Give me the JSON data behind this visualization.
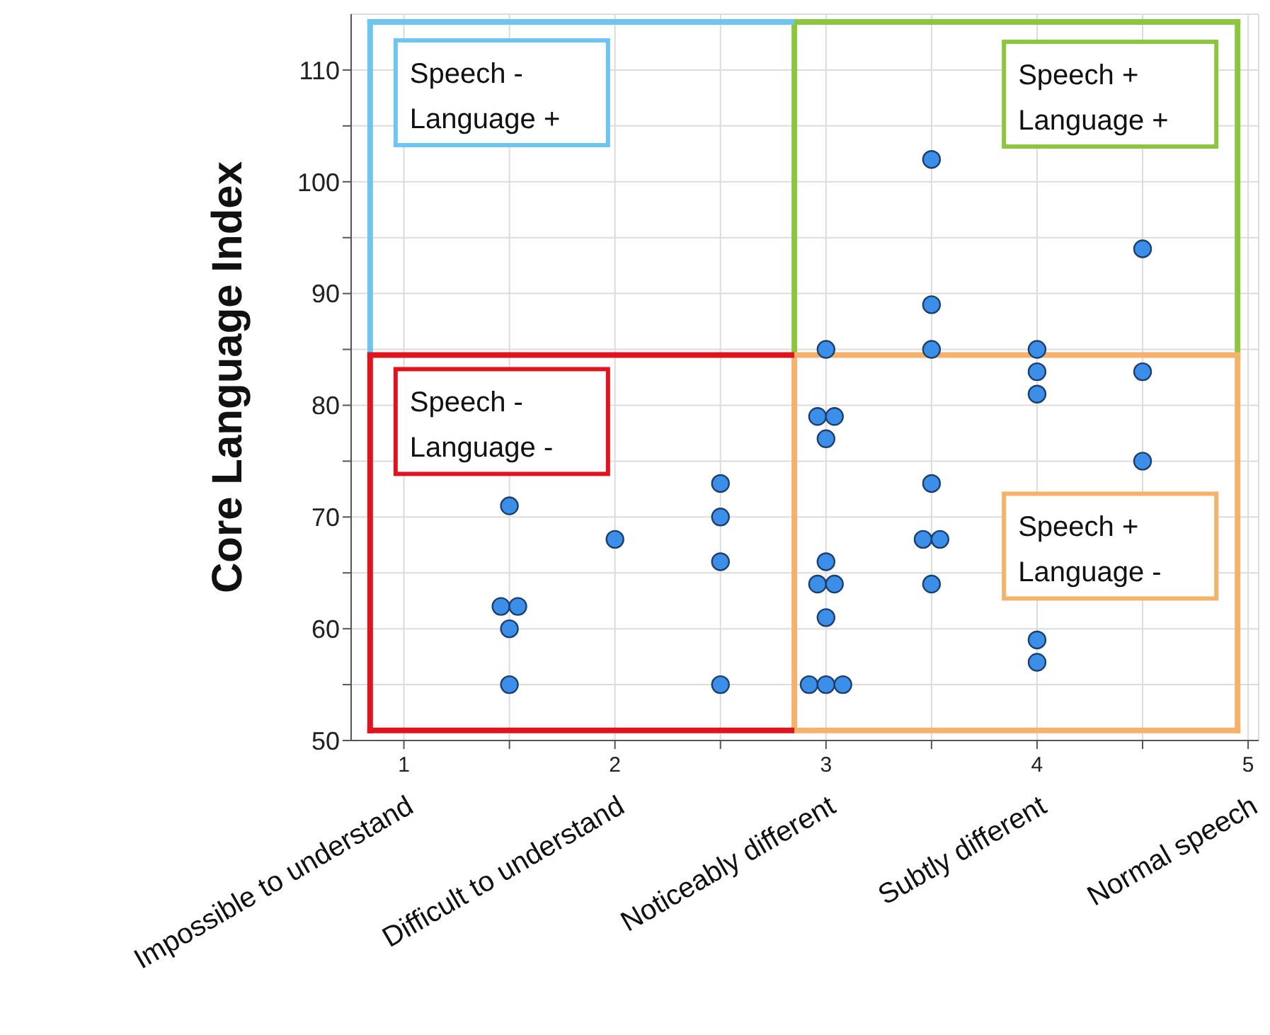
{
  "chart_data": {
    "type": "scatter",
    "ylabel": "Core Language Index",
    "x": [
      1.5,
      1.46,
      1.54,
      1.5,
      1.5,
      2,
      2.5,
      2.5,
      2.5,
      2.5,
      3,
      2.96,
      3.04,
      3,
      3,
      2.96,
      3.04,
      3,
      2.92,
      3,
      3.08,
      3.5,
      3.5,
      3.5,
      3.5,
      3.46,
      3.54,
      3.5,
      4,
      4,
      4,
      4,
      4,
      4.5,
      4.5,
      4.5
    ],
    "series": [
      {
        "color": "#3c8fe8",
        "values": [
          71,
          62,
          62,
          60,
          55,
          68,
          73,
          70,
          66,
          55,
          85,
          79,
          79,
          77,
          66,
          64,
          64,
          61,
          55,
          55,
          55,
          102,
          89,
          85,
          73,
          68,
          68,
          64,
          85,
          83,
          81,
          59,
          57,
          94,
          83,
          75
        ]
      }
    ],
    "xlim": [
      0.75,
      5.05
    ],
    "xticks": [
      1,
      {
        "value": 1.5,
        "label": null
      },
      2,
      {
        "value": 2.5,
        "label": null
      },
      3,
      {
        "value": 3.5,
        "label": null
      },
      4,
      {
        "value": 4.5,
        "label": null
      },
      5
    ],
    "ylim": [
      50,
      115
    ],
    "yticks": [
      50,
      {
        "value": 55,
        "label": null
      },
      60,
      {
        "value": 65,
        "label": null
      },
      70,
      {
        "value": 75,
        "label": null
      },
      80,
      {
        "value": 85,
        "label": null
      },
      90,
      {
        "value": 95,
        "label": null
      },
      100,
      {
        "value": 105,
        "label": null
      },
      110
    ],
    "grid": true,
    "marker": "circle",
    "ref_lines": [
      {
        "axis": "x",
        "value": 0.84
      },
      {
        "axis": "x",
        "value": 2.85
      },
      {
        "axis": "x",
        "value": 4.95
      },
      {
        "axis": "y",
        "value": 114.3
      },
      {
        "axis": "y",
        "value": 84.5
      },
      {
        "axis": "y",
        "value": 50.9
      }
    ],
    "annotations": [
      "Speech -\nLanguage +",
      "Speech +\nLanguage +",
      "Speech -\nLanguage -",
      "Speech +\nLanguage -",
      "Impossible to understand",
      "Difficult to understand",
      "Noticeably different",
      "Subtly different",
      "Normal speech"
    ]
  }
}
